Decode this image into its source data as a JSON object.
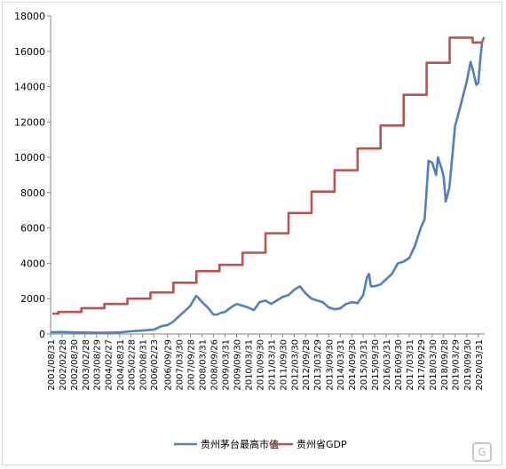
{
  "chart_data": {
    "type": "line",
    "title": "",
    "xlabel": "",
    "ylabel": "",
    "ylim": [
      0,
      18000
    ],
    "yticks": [
      0,
      2000,
      4000,
      6000,
      8000,
      10000,
      12000,
      14000,
      16000,
      18000
    ],
    "grid": false,
    "legend_position": "bottom",
    "x_tick_labels": [
      "2001/08/31",
      "2002/02/28",
      "2002/08/30",
      "2003/02/28",
      "2003/08/29",
      "2004/02/27",
      "2004/08/31",
      "2005/02/28",
      "2005/08/31",
      "2006/02/23",
      "2006/09/29",
      "2007/03/30",
      "2007/09/28",
      "2008/03/31",
      "2008/09/26",
      "2009/03/31",
      "2009/09/30",
      "2010/03/31",
      "2010/09/30",
      "2011/03/31",
      "2011/09/30",
      "2012/03/30",
      "2012/09/28",
      "2013/03/29",
      "2013/09/30",
      "2014/03/31",
      "2014/09/30",
      "2015/03/31",
      "2015/09/30",
      "2016/03/31",
      "2016/09/30",
      "2017/03/31",
      "2017/09/29",
      "2018/03/30",
      "2018/09/28",
      "2019/03/29",
      "2019/09/30",
      "2020/03/31"
    ],
    "series": [
      {
        "name": "贵州茅台最高市值",
        "color": "#4f81bd",
        "x": [
          "2001/08/31",
          "2002/02/28",
          "2002/08/30",
          "2003/02/28",
          "2003/08/29",
          "2004/02/27",
          "2004/08/31",
          "2005/02/28",
          "2005/08/31",
          "2006/02/23",
          "2006/06/30",
          "2006/09/29",
          "2006/12/29",
          "2007/03/30",
          "2007/06/29",
          "2007/09/28",
          "2007/11/30",
          "2007/12/28",
          "2008/01/31",
          "2008/03/31",
          "2008/06/30",
          "2008/09/26",
          "2008/11/28",
          "2009/01/23",
          "2009/03/31",
          "2009/06/30",
          "2009/09/30",
          "2009/12/31",
          "2010/03/31",
          "2010/06/30",
          "2010/09/30",
          "2010/12/31",
          "2011/03/31",
          "2011/06/30",
          "2011/09/30",
          "2011/12/30",
          "2012/03/30",
          "2012/06/29",
          "2012/09/28",
          "2012/12/31",
          "2013/03/29",
          "2013/06/28",
          "2013/09/30",
          "2013/12/31",
          "2014/03/31",
          "2014/06/30",
          "2014/09/30",
          "2014/12/31",
          "2015/03/31",
          "2015/05/29",
          "2015/06/30",
          "2015/07/31",
          "2015/09/30",
          "2015/12/31",
          "2016/03/31",
          "2016/06/30",
          "2016/09/30",
          "2016/12/30",
          "2017/03/31",
          "2017/06/30",
          "2017/09/29",
          "2017/11/30",
          "2017/12/29",
          "2018/01/31",
          "2018/03/30",
          "2018/05/31",
          "2018/06/29",
          "2018/08/31",
          "2018/09/28",
          "2018/10/31",
          "2018/12/28",
          "2019/03/29",
          "2019/04/30",
          "2019/06/28",
          "2019/09/30",
          "2019/11/29",
          "2019/12/31",
          "2020/02/28",
          "2020/03/31",
          "2020/04/30",
          "2020/05/29",
          "2020/06/30"
        ],
        "values": [
          100,
          110,
          90,
          80,
          70,
          75,
          90,
          150,
          200,
          250,
          450,
          500,
          700,
          1000,
          1300,
          1600,
          2000,
          2150,
          2050,
          1800,
          1500,
          1100,
          1100,
          1200,
          1250,
          1500,
          1700,
          1600,
          1500,
          1350,
          1800,
          1900,
          1700,
          1900,
          2100,
          2200,
          2500,
          2700,
          2300,
          2000,
          1900,
          1800,
          1500,
          1400,
          1450,
          1700,
          1800,
          1750,
          2200,
          3200,
          3400,
          2700,
          2700,
          2800,
          3100,
          3400,
          4000,
          4100,
          4300,
          5000,
          6000,
          6500,
          8000,
          9800,
          9700,
          9000,
          10000,
          9300,
          8900,
          7500,
          8300,
          11800,
          12200,
          13000,
          14300,
          15400,
          15000,
          14100,
          14200,
          15500,
          16500,
          16800
        ]
      },
      {
        "name": "贵州省GDP",
        "color": "#c0504d",
        "x": [
          2001,
          2002,
          2003,
          2004,
          2005,
          2006,
          2007,
          2008,
          2009,
          2010,
          2011,
          2012,
          2013,
          2014,
          2015,
          2016,
          2017,
          2018,
          2019,
          2020
        ],
        "values": [
          1150,
          1250,
          1460,
          1700,
          2000,
          2350,
          2900,
          3560,
          3910,
          4600,
          5700,
          6850,
          8060,
          9270,
          10500,
          11800,
          13540,
          15350,
          16770,
          16500
        ]
      }
    ]
  }
}
